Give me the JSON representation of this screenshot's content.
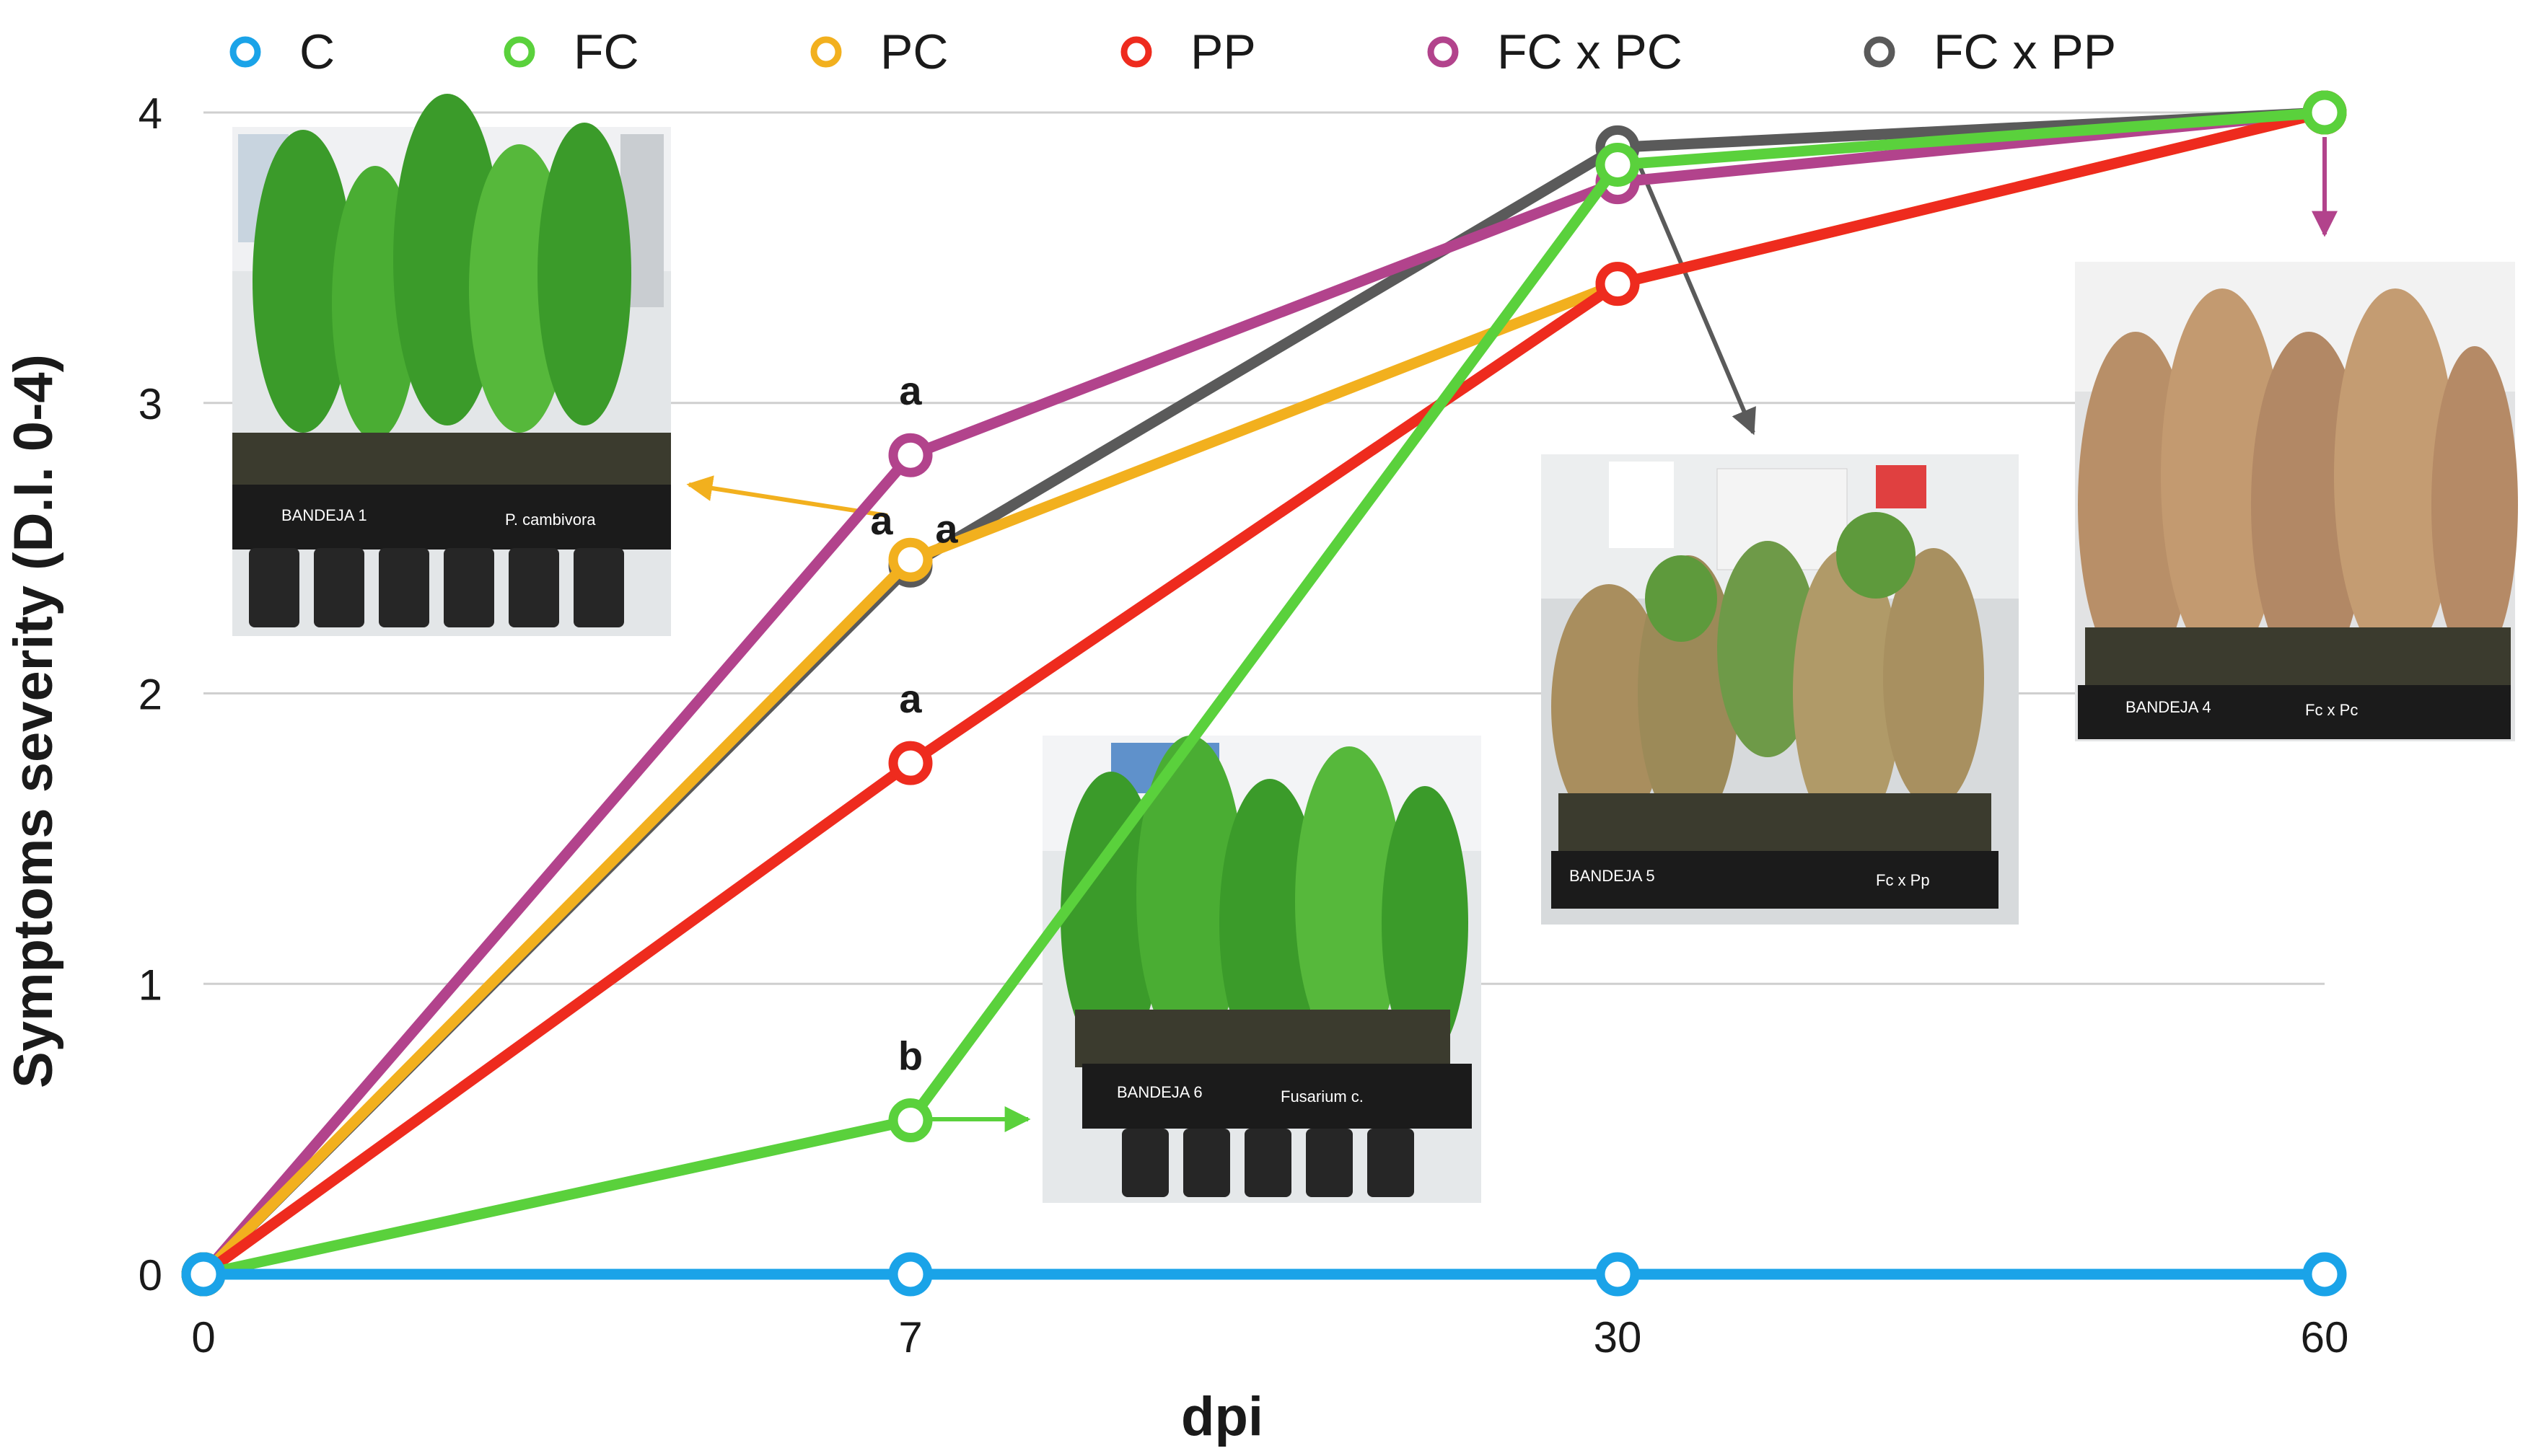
{
  "chart_data": {
    "type": "line",
    "title": "",
    "xlabel": "dpi",
    "ylabel": "Symptoms severity (D.I. 0-4)",
    "categories": [
      "0",
      "7",
      "30",
      "60"
    ],
    "ylim": [
      0,
      4
    ],
    "yticks": [
      "0",
      "1",
      "2",
      "3",
      "4"
    ],
    "grid": true,
    "legend_position": "top",
    "series": [
      {
        "name": "C",
        "color": "#1aa3e8",
        "values": [
          0,
          0,
          0,
          0
        ]
      },
      {
        "name": "FC",
        "color": "#5ad13c",
        "values": [
          0,
          0.53,
          3.82,
          4.0
        ]
      },
      {
        "name": "PC",
        "color": "#f2b01e",
        "values": [
          0,
          2.46,
          3.41,
          4.0
        ]
      },
      {
        "name": "PP",
        "color": "#ee2b1e",
        "values": [
          0,
          1.76,
          3.41,
          4.0
        ]
      },
      {
        "name": "FC x PC",
        "color": "#b2438c",
        "values": [
          0,
          2.82,
          3.76,
          4.0
        ]
      },
      {
        "name": "FC x PP",
        "color": "#5a5a5a",
        "values": [
          0,
          2.44,
          3.88,
          4.0
        ]
      }
    ],
    "significance_labels": [
      {
        "text": "a",
        "series": "FC x PC",
        "category": "7"
      },
      {
        "text": "a",
        "series": "PC",
        "category": "7",
        "side": "left"
      },
      {
        "text": "a",
        "series": "FC x PP",
        "category": "7",
        "side": "right"
      },
      {
        "text": "a",
        "series": "PP",
        "category": "7"
      },
      {
        "text": "b",
        "series": "FC",
        "category": "7"
      }
    ],
    "photos": [
      {
        "label_left": "BANDEJA 1",
        "label_right": "P. cambivora",
        "condition": "healthy"
      },
      {
        "label_left": "BANDEJA 6",
        "label_right": "Fusarium c.",
        "condition": "healthy"
      },
      {
        "label_left": "BANDEJA 5",
        "label_right": "Fc x Pp",
        "condition": "wilting"
      },
      {
        "label_left": "BANDEJA 4",
        "label_right": "Fc x Pc",
        "condition": "dead"
      }
    ]
  }
}
